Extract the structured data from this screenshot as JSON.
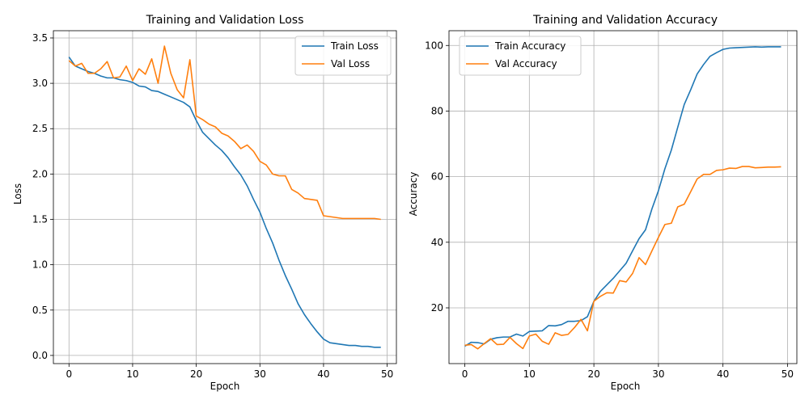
{
  "colors": {
    "train": "#1f77b4",
    "val": "#ff7f0e",
    "grid": "#b0b0b0"
  },
  "chart_data": [
    {
      "type": "line",
      "title": "Training and Validation Loss",
      "xlabel": "Epoch",
      "ylabel": "Loss",
      "xlim": [
        -2.45,
        51.45
      ],
      "ylim": [
        -0.09,
        3.58
      ],
      "xticks": [
        0,
        10,
        20,
        30,
        40,
        50
      ],
      "xtick_labels": [
        "0",
        "10",
        "20",
        "30",
        "40",
        "50"
      ],
      "yticks": [
        0,
        0.5,
        1,
        1.5,
        2,
        2.5,
        3,
        3.5
      ],
      "ytick_labels": [
        "0.0",
        "0.5",
        "1.0",
        "1.5",
        "2.0",
        "2.5",
        "3.0",
        "3.5"
      ],
      "grid": true,
      "legend_position": "top-right",
      "x": [
        0,
        1,
        2,
        3,
        4,
        5,
        6,
        7,
        8,
        9,
        10,
        11,
        12,
        13,
        14,
        15,
        16,
        17,
        18,
        19,
        20,
        21,
        22,
        23,
        24,
        25,
        26,
        27,
        28,
        29,
        30,
        31,
        32,
        33,
        34,
        35,
        36,
        37,
        38,
        39,
        40,
        41,
        42,
        43,
        44,
        45,
        46,
        47,
        48,
        49
      ],
      "series": [
        {
          "name": "Train Loss",
          "color": "#1f77b4",
          "values": [
            3.29,
            3.19,
            3.16,
            3.13,
            3.11,
            3.08,
            3.06,
            3.06,
            3.04,
            3.03,
            3.01,
            2.97,
            2.96,
            2.92,
            2.91,
            2.88,
            2.85,
            2.82,
            2.79,
            2.74,
            2.59,
            2.46,
            2.39,
            2.32,
            2.26,
            2.18,
            2.08,
            1.99,
            1.87,
            1.72,
            1.58,
            1.4,
            1.24,
            1.05,
            0.88,
            0.73,
            0.57,
            0.45,
            0.35,
            0.26,
            0.18,
            0.14,
            0.13,
            0.12,
            0.11,
            0.11,
            0.1,
            0.1,
            0.09,
            0.09
          ]
        },
        {
          "name": "Val Loss",
          "color": "#ff7f0e",
          "values": [
            3.25,
            3.19,
            3.22,
            3.11,
            3.11,
            3.16,
            3.24,
            3.06,
            3.07,
            3.19,
            3.03,
            3.16,
            3.1,
            3.27,
            3.0,
            3.41,
            3.11,
            2.93,
            2.84,
            3.26,
            2.64,
            2.6,
            2.55,
            2.52,
            2.45,
            2.42,
            2.36,
            2.28,
            2.32,
            2.25,
            2.14,
            2.1,
            2.0,
            1.98,
            1.98,
            1.83,
            1.79,
            1.73,
            1.72,
            1.71,
            1.54,
            1.53,
            1.52,
            1.51,
            1.51,
            1.51,
            1.51,
            1.51,
            1.51,
            1.5
          ]
        }
      ]
    },
    {
      "type": "line",
      "title": "Training and Validation Accuracy",
      "xlabel": "Epoch",
      "ylabel": "Accuracy",
      "xlim": [
        -2.45,
        51.45
      ],
      "ylim": [
        3.0,
        104.5
      ],
      "xticks": [
        0,
        10,
        20,
        30,
        40,
        50
      ],
      "xtick_labels": [
        "0",
        "10",
        "20",
        "30",
        "40",
        "50"
      ],
      "yticks": [
        20,
        40,
        60,
        80,
        100
      ],
      "ytick_labels": [
        "20",
        "40",
        "60",
        "80",
        "100"
      ],
      "grid": true,
      "legend_position": "top-left",
      "x": [
        0,
        1,
        2,
        3,
        4,
        5,
        6,
        7,
        8,
        9,
        10,
        11,
        12,
        13,
        14,
        15,
        16,
        17,
        18,
        19,
        20,
        21,
        22,
        23,
        24,
        25,
        26,
        27,
        28,
        29,
        30,
        31,
        32,
        33,
        34,
        35,
        36,
        37,
        38,
        39,
        40,
        41,
        42,
        43,
        44,
        45,
        46,
        47,
        48,
        49
      ],
      "series": [
        {
          "name": "Train Accuracy",
          "color": "#1f77b4",
          "values": [
            8.3,
            9.5,
            9.4,
            9.0,
            10.4,
            10.9,
            11.1,
            11.1,
            12.0,
            11.4,
            12.8,
            12.9,
            13.0,
            14.6,
            14.5,
            14.9,
            15.9,
            15.9,
            16.1,
            17.3,
            22.0,
            25.0,
            27.0,
            29.0,
            31.3,
            33.6,
            37.4,
            41.1,
            43.8,
            50.2,
            55.7,
            62.4,
            68.1,
            75.1,
            82.0,
            86.5,
            91.3,
            94.2,
            96.7,
            97.8,
            98.8,
            99.2,
            99.3,
            99.4,
            99.5,
            99.6,
            99.5,
            99.6,
            99.6,
            99.6
          ]
        },
        {
          "name": "Val Accuracy",
          "color": "#ff7f0e",
          "values": [
            8.6,
            8.8,
            7.5,
            9.1,
            10.6,
            8.8,
            8.9,
            11.0,
            9.1,
            7.6,
            11.4,
            12.0,
            9.8,
            8.9,
            12.4,
            11.6,
            11.9,
            14.0,
            16.5,
            13.0,
            22.0,
            23.5,
            24.6,
            24.5,
            28.3,
            27.9,
            30.5,
            35.3,
            33.2,
            37.4,
            41.5,
            45.4,
            45.8,
            50.8,
            51.6,
            55.4,
            59.3,
            60.7,
            60.7,
            61.9,
            62.1,
            62.6,
            62.5,
            63.1,
            63.1,
            62.7,
            62.8,
            62.9,
            62.9,
            63.0
          ]
        }
      ]
    }
  ]
}
